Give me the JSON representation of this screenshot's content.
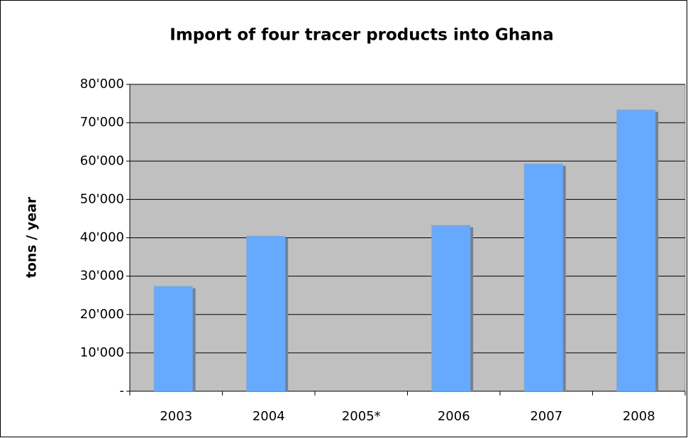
{
  "chart_data": {
    "type": "bar",
    "title": "Import of four tracer products into Ghana",
    "y_label": "tons / year",
    "categories": [
      "2003",
      "2004",
      "2005*",
      "2006",
      "2007",
      "2008"
    ],
    "values": [
      27400,
      40500,
      null,
      43300,
      59300,
      73400
    ],
    "color": "#66aaff",
    "ylim": [
      0,
      80000
    ],
    "yticks": [
      {
        "value": 0,
        "label": "-"
      },
      {
        "value": 10000,
        "label": "10'000"
      },
      {
        "value": 20000,
        "label": "20'000"
      },
      {
        "value": 30000,
        "label": "30'000"
      },
      {
        "value": 40000,
        "label": "40'000"
      },
      {
        "value": 50000,
        "label": "50'000"
      },
      {
        "value": 60000,
        "label": "60'000"
      },
      {
        "value": 70000,
        "label": "70'000"
      },
      {
        "value": 80000,
        "label": "80'000"
      }
    ],
    "grid": true
  }
}
